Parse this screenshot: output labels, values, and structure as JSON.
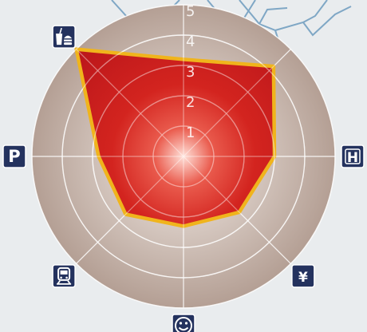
{
  "chart_data": {
    "type": "radar",
    "title": "",
    "scale": {
      "min": 0,
      "max": 5,
      "ticks": [
        1,
        2,
        3,
        4,
        5
      ]
    },
    "grid": true,
    "axes": [
      {
        "icon": "hotel-icon",
        "label": "H"
      },
      {
        "icon": "yen-icon",
        "label": "¥"
      },
      {
        "icon": "smiley-icon",
        "label": ""
      },
      {
        "icon": "train-icon",
        "label": ""
      },
      {
        "icon": "parking-icon",
        "label": "P"
      },
      {
        "icon": "fast-food-icon",
        "label": ""
      },
      {
        "icon": "construction-excavator-icon",
        "label": ""
      },
      {
        "icon": "unlabeled-axis",
        "label": ""
      }
    ],
    "series": [
      {
        "values": [
          3.0,
          2.6,
          2.3,
          2.7,
          2.8,
          5.0,
          3.2,
          4.2
        ]
      }
    ],
    "colors": {
      "fill": "#c81e1c",
      "stroke": "#f0b41c",
      "background_ring": "#b7a499",
      "icon_bg": "#24325e",
      "grid": "#ffffff",
      "map_lines": "#7fa7c5"
    }
  }
}
